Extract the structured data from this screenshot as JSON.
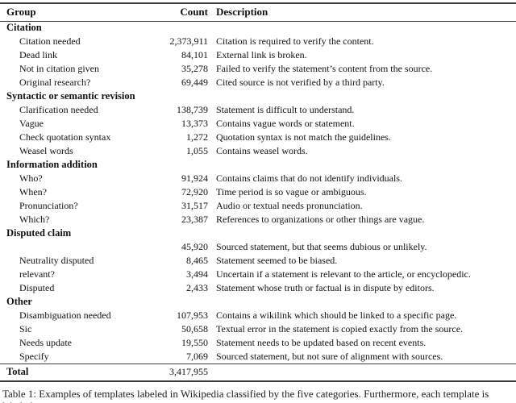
{
  "page": {
    "background": "#ffffff",
    "text_color": "#111111",
    "rule_color": "#3c3c3c"
  },
  "table": {
    "headers": [
      "Group",
      "Count",
      "Description"
    ],
    "sections": [
      {
        "group": "Citation",
        "rows": [
          {
            "label": "Citation needed",
            "count": "2,373,911",
            "desc": "Citation is required to verify the content."
          },
          {
            "label": "Dead link",
            "count": "84,101",
            "desc": "External link is broken."
          },
          {
            "label": "Not in citation given",
            "count": "35,278",
            "desc": "Failed to verify the statement’s content from the source."
          },
          {
            "label": "Original research?",
            "count": "69,449",
            "desc": "Cited source is not verified by a third party."
          }
        ]
      },
      {
        "group": "Syntactic or semantic revision",
        "rows": [
          {
            "label": "Clarification needed",
            "count": "138,739",
            "desc": "Statement is difficult to understand."
          },
          {
            "label": "Vague",
            "count": "13,373",
            "desc": "Contains vague words or statement."
          },
          {
            "label": "Check quotation syntax",
            "count": "1,272",
            "desc": "Quotation syntax is not match the guidelines."
          },
          {
            "label": "Weasel words",
            "count": "1,055",
            "desc": "Contains weasel words."
          }
        ]
      },
      {
        "group": "Information addition",
        "rows": [
          {
            "label": "Who?",
            "count": "91,924",
            "desc": "Contains claims that do not identify individuals."
          },
          {
            "label": "When?",
            "count": "72,920",
            "desc": "Time period is so vague or ambiguous."
          },
          {
            "label": "Pronunciation?",
            "count": "31,517",
            "desc": "Audio or textual needs pronunciation."
          },
          {
            "label": "Which?",
            "count": "23,387",
            "desc": "References to organizations or other things are vague."
          }
        ]
      },
      {
        "group": "Disputed claim",
        "rows": [
          {
            "label": "",
            "count": "45,920",
            "desc": "Sourced statement, but that seems dubious or unlikely."
          },
          {
            "label": "Neutrality disputed",
            "count": "8,465",
            "desc": "Statement seemed to be biased."
          },
          {
            "label": "relevant?",
            "count": "3,494",
            "desc": "Uncertain if a statement is relevant to the article, or encyclopedic."
          },
          {
            "label": "Disputed",
            "count": "2,433",
            "desc": "Statement whose truth or factual is in dispute by editors."
          }
        ]
      },
      {
        "group": "Other",
        "rows": [
          {
            "label": "Disambiguation needed",
            "count": "107,953",
            "desc": "Contains a wikilink which should be linked to a specific page."
          },
          {
            "label": "Sic",
            "count": "50,658",
            "desc": "Textual error in the statement is copied exactly from the source."
          },
          {
            "label": "Needs update",
            "count": "19,550",
            "desc": "Statement needs to be updated based on recent events."
          },
          {
            "label": "Specify",
            "count": "7,069",
            "desc": "Sourced statement, but not sure of alignment with sources."
          }
        ]
      }
    ],
    "total": {
      "label": "Total",
      "count": "3,417,955"
    }
  },
  "caption": {
    "text": "Table 1: Examples of templates labeled in Wikipedia classified by the five categories. Furthermore, each template is labeled"
  }
}
